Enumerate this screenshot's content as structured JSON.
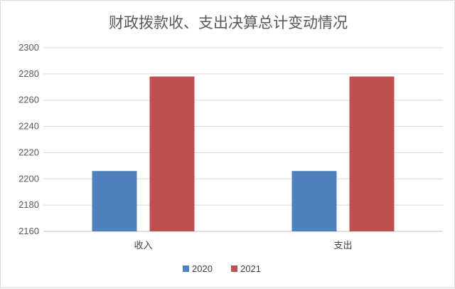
{
  "chart_data": {
    "type": "bar",
    "title": "财政拨款收、支出决算总计变动情况",
    "xlabel": "",
    "ylabel": "",
    "categories": [
      "收入",
      "支出"
    ],
    "series": [
      {
        "name": "2020",
        "values": [
          2206,
          2206
        ],
        "color": "#4f81bd"
      },
      {
        "name": "2021",
        "values": [
          2278,
          2278
        ],
        "color": "#c0504d"
      }
    ],
    "ylim": [
      2160,
      2300
    ],
    "yticks": [
      2160,
      2180,
      2200,
      2220,
      2240,
      2260,
      2280,
      2300
    ],
    "grid": true,
    "legend_position": "bottom"
  }
}
